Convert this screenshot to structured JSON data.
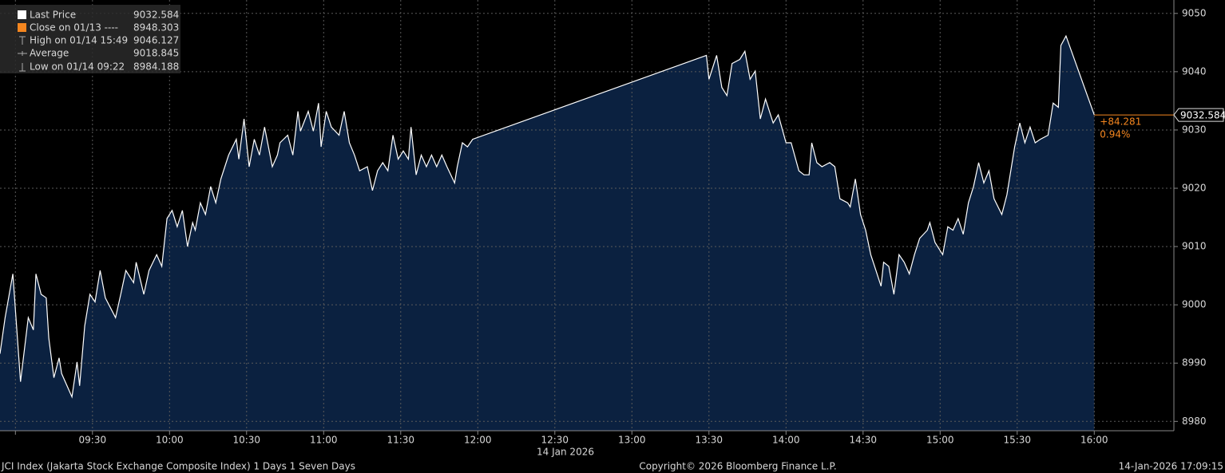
{
  "chart_data": {
    "type": "area",
    "series": [
      {
        "name": "Last Price",
        "color": "#ffffff",
        "fill": "#0b2140",
        "x": [
          "08:54",
          "08:56",
          "08:59",
          "09:02",
          "09:05",
          "09:07",
          "09:08",
          "09:10",
          "09:12",
          "09:13",
          "09:15",
          "09:17",
          "09:18",
          "09:22",
          "09:24",
          "09:25",
          "09:27",
          "09:29",
          "09:31",
          "09:33",
          "09:35",
          "09:39",
          "09:41",
          "09:43",
          "09:46",
          "09:47",
          "09:50",
          "09:52",
          "09:55",
          "09:57",
          "09:59",
          "10:01",
          "10:03",
          "10:05",
          "10:07",
          "10:09",
          "10:10",
          "10:12",
          "10:14",
          "10:16",
          "10:18",
          "10:20",
          "10:23",
          "10:26",
          "10:27",
          "10:29",
          "10:31",
          "10:33",
          "10:35",
          "10:37",
          "10:40",
          "10:42",
          "10:43",
          "10:46",
          "10:48",
          "10:50",
          "10:51",
          "10:54",
          "10:56",
          "10:58",
          "10:59",
          "11:01",
          "11:03",
          "11:06",
          "11:08",
          "11:10",
          "11:12",
          "11:14",
          "11:17",
          "11:19",
          "11:21",
          "11:23",
          "11:25",
          "11:27",
          "11:29",
          "11:31",
          "11:33",
          "11:34",
          "11:36",
          "11:38",
          "11:40",
          "11:42",
          "11:44",
          "11:46",
          "11:48",
          "11:51",
          "11:52",
          "11:54",
          "11:56",
          "11:58",
          "13:29",
          "13:30",
          "13:33",
          "13:35",
          "13:37",
          "13:39",
          "13:42",
          "13:44",
          "13:46",
          "13:48",
          "13:50",
          "13:52",
          "13:55",
          "13:57",
          "14:00",
          "14:02",
          "14:05",
          "14:07",
          "14:09",
          "14:10",
          "14:12",
          "14:14",
          "14:17",
          "14:19",
          "14:21",
          "14:24",
          "14:25",
          "14:27",
          "14:29",
          "14:31",
          "14:33",
          "14:35",
          "14:37",
          "14:38",
          "14:40",
          "14:42",
          "14:44",
          "14:46",
          "14:48",
          "14:50",
          "14:52",
          "14:55",
          "14:56",
          "14:58",
          "15:01",
          "15:03",
          "15:05",
          "15:07",
          "15:09",
          "15:11",
          "15:13",
          "15:15",
          "15:17",
          "15:19",
          "15:21",
          "15:24",
          "15:26",
          "15:29",
          "15:31",
          "15:33",
          "15:35",
          "15:37",
          "15:39",
          "15:42",
          "15:44",
          "15:46",
          "15:47",
          "15:49",
          "16:00"
        ],
        "values": [
          8991.6,
          8997.8,
          9005.3,
          8986.8,
          8997.8,
          8995.7,
          9005.3,
          9001.8,
          9001.2,
          8994.3,
          8987.5,
          8990.9,
          8988.2,
          8984.2,
          8990.2,
          8986.1,
          8996.4,
          9001.8,
          9000.5,
          9005.9,
          9001.2,
          8997.8,
          9001.8,
          9005.9,
          9003.8,
          9007.3,
          9001.8,
          9005.9,
          9008.6,
          9006.6,
          9014.8,
          9016.2,
          9013.4,
          9016.2,
          9010.0,
          9014.1,
          9012.8,
          9017.5,
          9015.5,
          9020.3,
          9017.5,
          9021.6,
          9025.7,
          9028.4,
          9025.0,
          9031.9,
          9023.7,
          9028.4,
          9025.7,
          9030.5,
          9023.7,
          9025.7,
          9027.8,
          9029.1,
          9025.7,
          9033.2,
          9029.8,
          9033.2,
          9029.8,
          9034.6,
          9027.1,
          9033.2,
          9030.5,
          9029.1,
          9033.2,
          9027.8,
          9025.7,
          9023.0,
          9023.7,
          9019.6,
          9023.0,
          9024.4,
          9023.0,
          9029.1,
          9025.0,
          9026.4,
          9025.0,
          9030.5,
          9022.3,
          9025.7,
          9023.7,
          9025.7,
          9023.7,
          9025.7,
          9023.7,
          9020.9,
          9023.7,
          9027.8,
          9027.1,
          9028.4,
          9042.8,
          9038.7,
          9042.8,
          9037.3,
          9035.9,
          9041.4,
          9042.1,
          9043.5,
          9038.7,
          9040.1,
          9031.9,
          9035.3,
          9031.2,
          9032.6,
          9027.8,
          9027.8,
          9023.0,
          9022.3,
          9022.3,
          9027.8,
          9024.4,
          9023.7,
          9024.4,
          9023.7,
          9018.2,
          9017.5,
          9016.8,
          9021.6,
          9015.5,
          9012.8,
          9008.6,
          9005.9,
          9003.2,
          9007.3,
          9006.6,
          9001.8,
          9008.6,
          9007.3,
          9005.3,
          9008.6,
          9011.4,
          9012.8,
          9014.1,
          9010.7,
          9008.6,
          9013.4,
          9012.8,
          9014.8,
          9012.1,
          9017.5,
          9020.3,
          9024.4,
          9020.9,
          9023.0,
          9018.2,
          9015.5,
          9018.9,
          9027.1,
          9031.2,
          9027.8,
          9030.5,
          9027.8,
          9028.4,
          9029.1,
          9034.6,
          9033.9,
          9044.5,
          9046.127,
          9032.584
        ]
      }
    ],
    "xlim": [
      "08:54",
      "16:31"
    ],
    "xticks": [
      {
        "value": "09:00",
        "label": null
      },
      "09:30",
      "10:00",
      "10:30",
      "11:00",
      "11:30",
      "12:00",
      "12:30",
      "13:00",
      "13:30",
      "14:00",
      "14:30",
      "15:00",
      "15:30",
      "16:00"
    ],
    "x_label": "14 Jan 2026",
    "ylim": [
      8978.4,
      9052.3
    ],
    "yticks": [
      8980,
      8990,
      9000,
      9010,
      9020,
      9030,
      9040,
      9050
    ],
    "grid": true,
    "last_price_color": "#f5861f",
    "change": "+84.281",
    "change_pct": "0.94%",
    "legend": [
      {
        "label": "Last Price",
        "value": 9032.584
      },
      {
        "label": "Close on 01/13 ----",
        "value": 8948.303
      },
      {
        "label": "High on 01/14 15:49",
        "value": 9046.127
      },
      {
        "label": "Average",
        "value": 9018.845
      },
      {
        "label": "Low on 01/14 09:22",
        "value": 8984.188
      }
    ],
    "footer_left": "JCI Index (Jakarta Stock Exchange Composite Index) 1 Days 1 Seven Days",
    "footer_center": "Copyright© 2026 Bloomberg Finance L.P.",
    "footer_right": "14-Jan-2026 17:09:15"
  }
}
